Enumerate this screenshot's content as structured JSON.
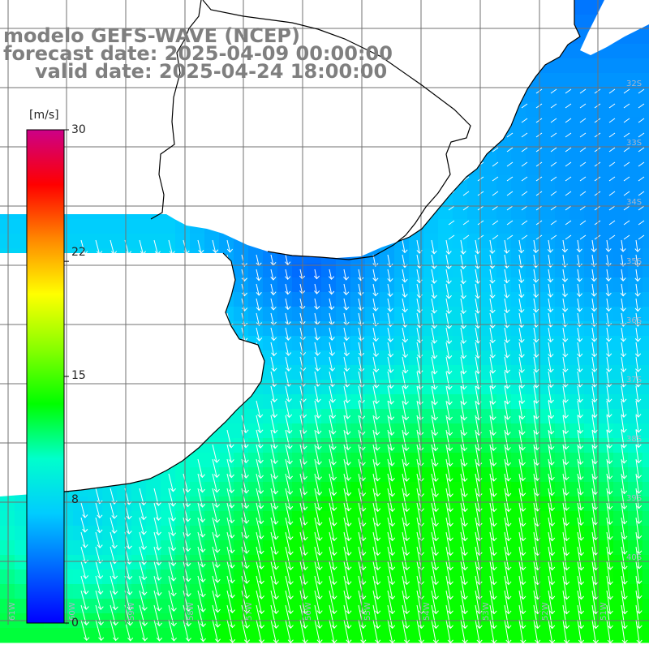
{
  "title": {
    "model_line": "modelo GEFS-WAVE (NCEP)",
    "forecast_line": "forecast date: 2025-04-09 00:00:00",
    "valid_line": "valid date: 2025-04-24 18:00:00"
  },
  "colorbar": {
    "unit": "[m/s]",
    "ticks": [
      "30",
      "22",
      "15",
      "8",
      "0"
    ],
    "tick_values": [
      30,
      22,
      15,
      8,
      0
    ],
    "range": [
      0,
      30
    ],
    "colors": [
      "#0000ff",
      "#0066ff",
      "#00ccff",
      "#00ffcc",
      "#00ff00",
      "#88ff00",
      "#ffff00",
      "#ff8800",
      "#ff0000",
      "#cc0088"
    ]
  },
  "axes": {
    "lat_labels": [
      "32S",
      "33S",
      "34S",
      "35S",
      "36S",
      "37S",
      "38S",
      "39S",
      "40S"
    ],
    "lon_labels": [
      "61W",
      "60W",
      "59W",
      "58W",
      "57W",
      "56W",
      "55W",
      "54W",
      "53W",
      "52W",
      "51W"
    ]
  },
  "colors": {
    "land": "#ffffff",
    "grid": "#707070",
    "coastline": "#000000",
    "arrow": "#ffffff",
    "title_text": "#7f7f7f"
  }
}
